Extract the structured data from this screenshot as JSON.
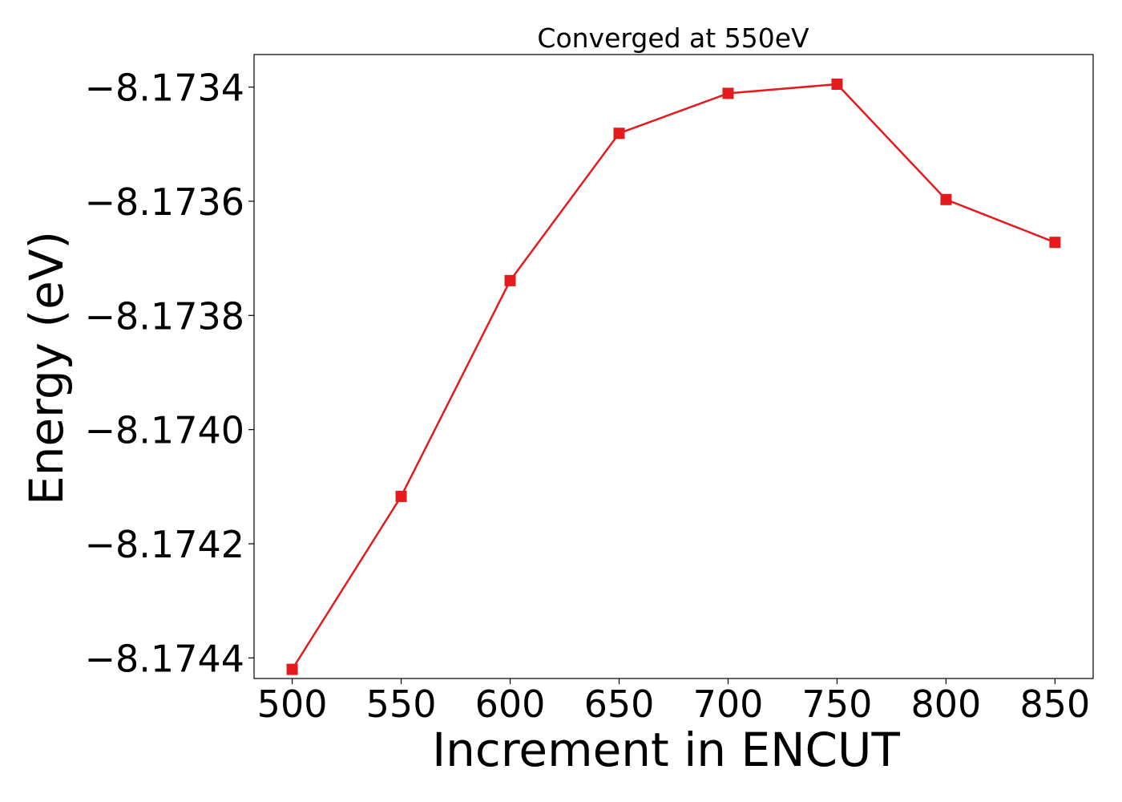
{
  "chart_data": {
    "type": "line",
    "title": "Converged at 550eV",
    "xlabel": "Increment in ENCUT",
    "ylabel": "Energy (eV)",
    "x": [
      500,
      550,
      600,
      650,
      700,
      750,
      800,
      850
    ],
    "series": [
      {
        "values": [
          -8.17442,
          -8.174117,
          -8.173739,
          -8.173481,
          -8.173411,
          -8.173395,
          -8.173597,
          -8.173672
        ],
        "color": "#e41a1c",
        "marker": "square"
      }
    ],
    "x_ticks": [
      500,
      550,
      600,
      650,
      700,
      750,
      800,
      850
    ],
    "y_ticks": [
      -8.1734,
      -8.1736,
      -8.1738,
      -8.174,
      -8.1742,
      -8.1744
    ],
    "y_tick_labels": [
      "−8.1734",
      "−8.1736",
      "−8.1738",
      "−8.1740",
      "−8.1742",
      "−8.1744"
    ],
    "xlim": [
      482.5,
      867.5
    ],
    "ylim": [
      -8.174436,
      -8.173343
    ],
    "grid": false,
    "legend": "none"
  }
}
